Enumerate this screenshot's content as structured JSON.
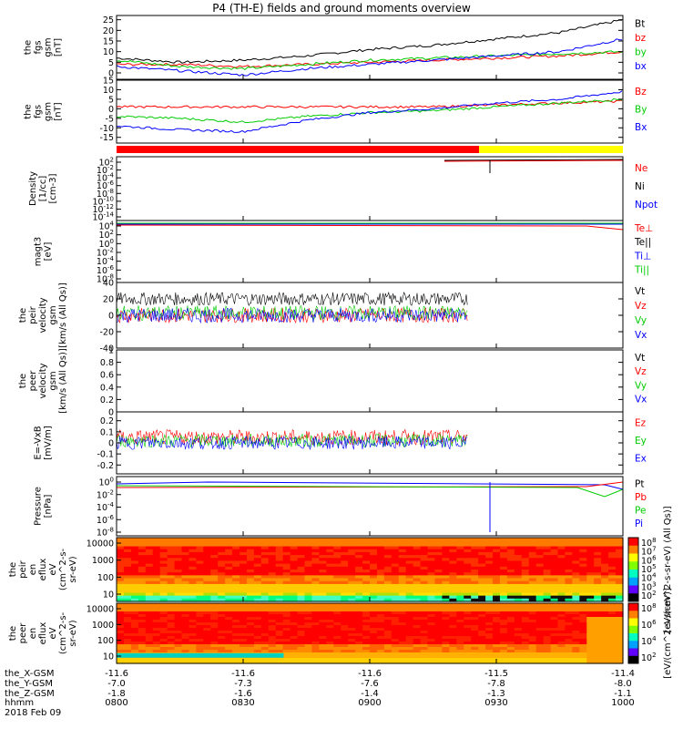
{
  "title": "P4 (TH-E) fields and ground moments overview",
  "chart_data": [
    {
      "type": "line",
      "panel": "fgs-gse",
      "ylabel": [
        "the",
        "fgs",
        "gsm",
        "[nT]"
      ],
      "yticks": [
        0,
        5,
        10,
        15,
        20,
        25
      ],
      "ylim": [
        -3,
        27
      ],
      "x": [
        0,
        15,
        30,
        45,
        60,
        75,
        90,
        105,
        120
      ],
      "series": [
        {
          "name": "Bt",
          "color": "#000000",
          "values": [
            7,
            5,
            6,
            8,
            11,
            13,
            16,
            19,
            25
          ]
        },
        {
          "name": "bz",
          "color": "#ff0000",
          "values": [
            4,
            4,
            3,
            4,
            5,
            6,
            7,
            8,
            10
          ]
        },
        {
          "name": "by",
          "color": "#00cc00",
          "values": [
            6,
            3,
            2,
            4,
            6,
            7,
            8,
            9,
            10
          ]
        },
        {
          "name": "bx",
          "color": "#0000ff",
          "values": [
            3,
            1,
            -1,
            2,
            4,
            6,
            8,
            10,
            16
          ]
        }
      ]
    },
    {
      "type": "line",
      "panel": "fgs-gsm",
      "ylabel": [
        "the",
        "fgs",
        "gsm",
        "[nT]"
      ],
      "yticks": [
        -15,
        -10,
        -5,
        0,
        5,
        10,
        15
      ],
      "ylim": [
        -18,
        15
      ],
      "x": [
        0,
        15,
        30,
        45,
        60,
        75,
        90,
        105,
        120
      ],
      "series": [
        {
          "name": "Bz",
          "color": "#ff0000",
          "values": [
            1,
            1,
            1,
            1,
            1,
            1,
            2,
            3,
            4
          ]
        },
        {
          "name": "By",
          "color": "#00cc00",
          "values": [
            -4,
            -5,
            -7,
            -4,
            -2,
            -1,
            1,
            3,
            5
          ]
        },
        {
          "name": "Bx",
          "color": "#0000ff",
          "values": [
            -9,
            -11,
            -12,
            -6,
            -2,
            0,
            3,
            5,
            9
          ]
        }
      ]
    },
    {
      "type": "line",
      "panel": "density",
      "ylabel": [
        "Density",
        "[1/cc]",
        "[cm-3]"
      ],
      "yticks": [
        "10^2",
        "10^-2",
        "10^-4",
        "10^-6",
        "10^-8",
        "10^-10",
        "10^-12",
        "10^-14"
      ],
      "series": [
        {
          "name": "Ne",
          "color": "#ff0000"
        },
        {
          "name": "Ni",
          "color": "#000000"
        },
        {
          "name": "Npot",
          "color": "#0000ff"
        }
      ]
    },
    {
      "type": "line",
      "panel": "temperature",
      "ylabel": [
        "magt3",
        "[eV]"
      ],
      "yticks": [
        "10^4",
        "10^2",
        "10^0",
        "10^-2",
        "10^-4",
        "10^-6",
        "10^-8"
      ],
      "series": [
        {
          "name": "Te⊥",
          "color": "#ff0000"
        },
        {
          "name": "Te||",
          "color": "#000000"
        },
        {
          "name": "Ti⊥",
          "color": "#0000ff"
        },
        {
          "name": "Ti||",
          "color": "#00cc00"
        }
      ]
    },
    {
      "type": "line",
      "panel": "peir-velocity",
      "ylabel": [
        "the",
        "peir",
        "velocity",
        "gsm",
        "[km/s (All Qs)]"
      ],
      "yticks": [
        -40,
        -20,
        0,
        20,
        40
      ],
      "ylim": [
        -40,
        40
      ],
      "series": [
        {
          "name": "Vt",
          "color": "#000000"
        },
        {
          "name": "Vz",
          "color": "#ff0000"
        },
        {
          "name": "Vy",
          "color": "#00cc00"
        },
        {
          "name": "Vx",
          "color": "#0000ff"
        }
      ]
    },
    {
      "type": "line",
      "panel": "peer-velocity",
      "ylabel": [
        "the",
        "peer",
        "velocity",
        "gsm",
        "[km/s (All Qs)]"
      ],
      "yticks": [
        0.0,
        0.2,
        0.4,
        0.6,
        0.8,
        1.0
      ],
      "ylim": [
        0,
        1
      ],
      "series": [
        {
          "name": "Vt",
          "color": "#000000"
        },
        {
          "name": "Vz",
          "color": "#ff0000"
        },
        {
          "name": "Vy",
          "color": "#00cc00"
        },
        {
          "name": "Vx",
          "color": "#0000ff"
        }
      ]
    },
    {
      "type": "line",
      "panel": "efield",
      "ylabel": [
        "E=-VxB",
        "[mV/m]"
      ],
      "yticks": [
        -0.2,
        -0.1,
        0.0,
        0.1,
        0.2
      ],
      "ylim": [
        -0.28,
        0.28
      ],
      "series": [
        {
          "name": "Ez",
          "color": "#ff0000"
        },
        {
          "name": "Ey",
          "color": "#00cc00"
        },
        {
          "name": "Ex",
          "color": "#0000ff"
        }
      ]
    },
    {
      "type": "line",
      "panel": "pressure",
      "ylabel": [
        "Pressure",
        "[nPa]"
      ],
      "yticks": [
        "10^0",
        "10^-2",
        "10^-4",
        "10^-6",
        "10^-8"
      ],
      "series": [
        {
          "name": "Pt",
          "color": "#000000"
        },
        {
          "name": "Pb",
          "color": "#ff0000"
        },
        {
          "name": "Pe",
          "color": "#00cc00"
        },
        {
          "name": "Pi",
          "color": "#0000ff"
        }
      ]
    },
    {
      "type": "heatmap",
      "panel": "peir-spectrogram",
      "ylabel": [
        "the",
        "peir",
        "en",
        "eflux",
        "eV",
        "(cm^2-s-",
        "sr-eV)"
      ],
      "yticks": [
        10,
        100,
        1000,
        10000
      ],
      "colorbar_ticks": [
        "10^8",
        "10^7",
        "10^6",
        "10^5",
        "10^4",
        "10^3",
        "10^2"
      ],
      "colorbar_label": "[eV/(cm^2-s-sr-eV) (All Qs)]"
    },
    {
      "type": "heatmap",
      "panel": "peer-spectrogram",
      "ylabel": [
        "the",
        "peer",
        "en",
        "eflux",
        "eV",
        "(cm^2-s-",
        "sr-eV)"
      ],
      "yticks": [
        10,
        100,
        1000,
        10000
      ],
      "colorbar_ticks": [
        "10^8",
        "10^6",
        "10^4",
        "10^2"
      ],
      "colorbar_label": "[eV/(cm^2-s-sr-eV)]"
    }
  ],
  "footer": {
    "rows": [
      {
        "label": "the_X-GSM",
        "values": [
          "-11.6",
          "-11.6",
          "-11.6",
          "-11.5",
          "-11.4"
        ]
      },
      {
        "label": "the_Y-GSM",
        "values": [
          "-7.0",
          "-7.3",
          "-7.6",
          "-7.8",
          "-8.0"
        ]
      },
      {
        "label": "the_Z-GSM",
        "values": [
          "-1.8",
          "-1.6",
          "-1.4",
          "-1.3",
          "-1.1"
        ]
      },
      {
        "label": "hhmm",
        "values": [
          "0800",
          "0830",
          "0900",
          "0930",
          "1000"
        ]
      }
    ],
    "date": "2018 Feb 09"
  }
}
